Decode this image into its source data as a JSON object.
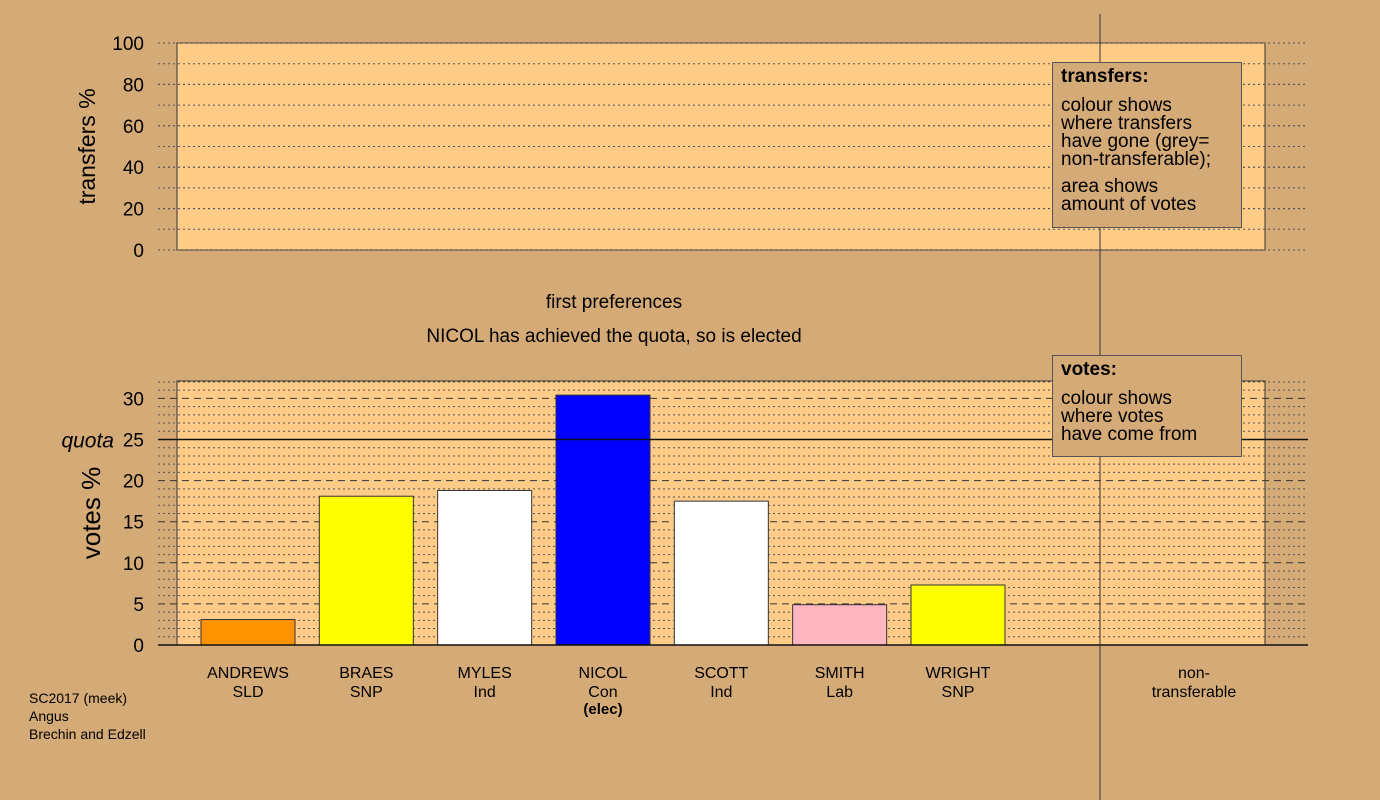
{
  "chart_data": [
    {
      "type": "bar",
      "ylabel": "transfers %",
      "ylim": [
        0,
        100
      ],
      "yticks": [
        0,
        20,
        40,
        60,
        80,
        100
      ],
      "categories": [],
      "values": [],
      "grid": true,
      "legend_box": {
        "title": "transfers:",
        "lines": [
          "colour shows",
          "where transfers",
          "have gone (grey=",
          "non-transferable);"
        ],
        "lines2": [
          "area shows",
          "amount of votes"
        ],
        "placement": "top-right"
      }
    },
    {
      "type": "bar",
      "title": "first preferences",
      "subtitle": "NICOL has achieved the quota, so is elected",
      "ylabel": "votes %",
      "ylim": [
        0,
        32
      ],
      "yticks": [
        0,
        5,
        10,
        15,
        20,
        25,
        30
      ],
      "quota": 25,
      "quota_label": "quota",
      "categories": [
        {
          "name": "ANDREWS",
          "party": "SLD",
          "value": 3.1,
          "color": "#ff9200"
        },
        {
          "name": "BRAES",
          "party": "SNP",
          "value": 18.1,
          "color": "#ffff00"
        },
        {
          "name": "MYLES",
          "party": "Ind",
          "value": 18.8,
          "color": "#ffffff"
        },
        {
          "name": "NICOL",
          "party": "Con",
          "value": 30.4,
          "color": "#0000ff",
          "note": "(elec)"
        },
        {
          "name": "SCOTT",
          "party": "Ind",
          "value": 17.5,
          "color": "#ffffff"
        },
        {
          "name": "SMITH",
          "party": "Lab",
          "value": 4.9,
          "color": "#ffb6c1"
        },
        {
          "name": "WRIGHT",
          "party": "SNP",
          "value": 7.3,
          "color": "#ffff00"
        }
      ],
      "nontransferable_label": [
        "non-",
        "transferable"
      ],
      "grid": true,
      "legend_box": {
        "title": "votes:",
        "lines": [
          "colour shows",
          "where votes",
          "have come from"
        ],
        "placement": "top-right"
      }
    }
  ],
  "colors": {
    "background": "#d4aa77",
    "plot_area": "#ffcc88"
  },
  "footer": [
    "SC2017 (meek)",
    "Angus",
    "Brechin and Edzell"
  ]
}
